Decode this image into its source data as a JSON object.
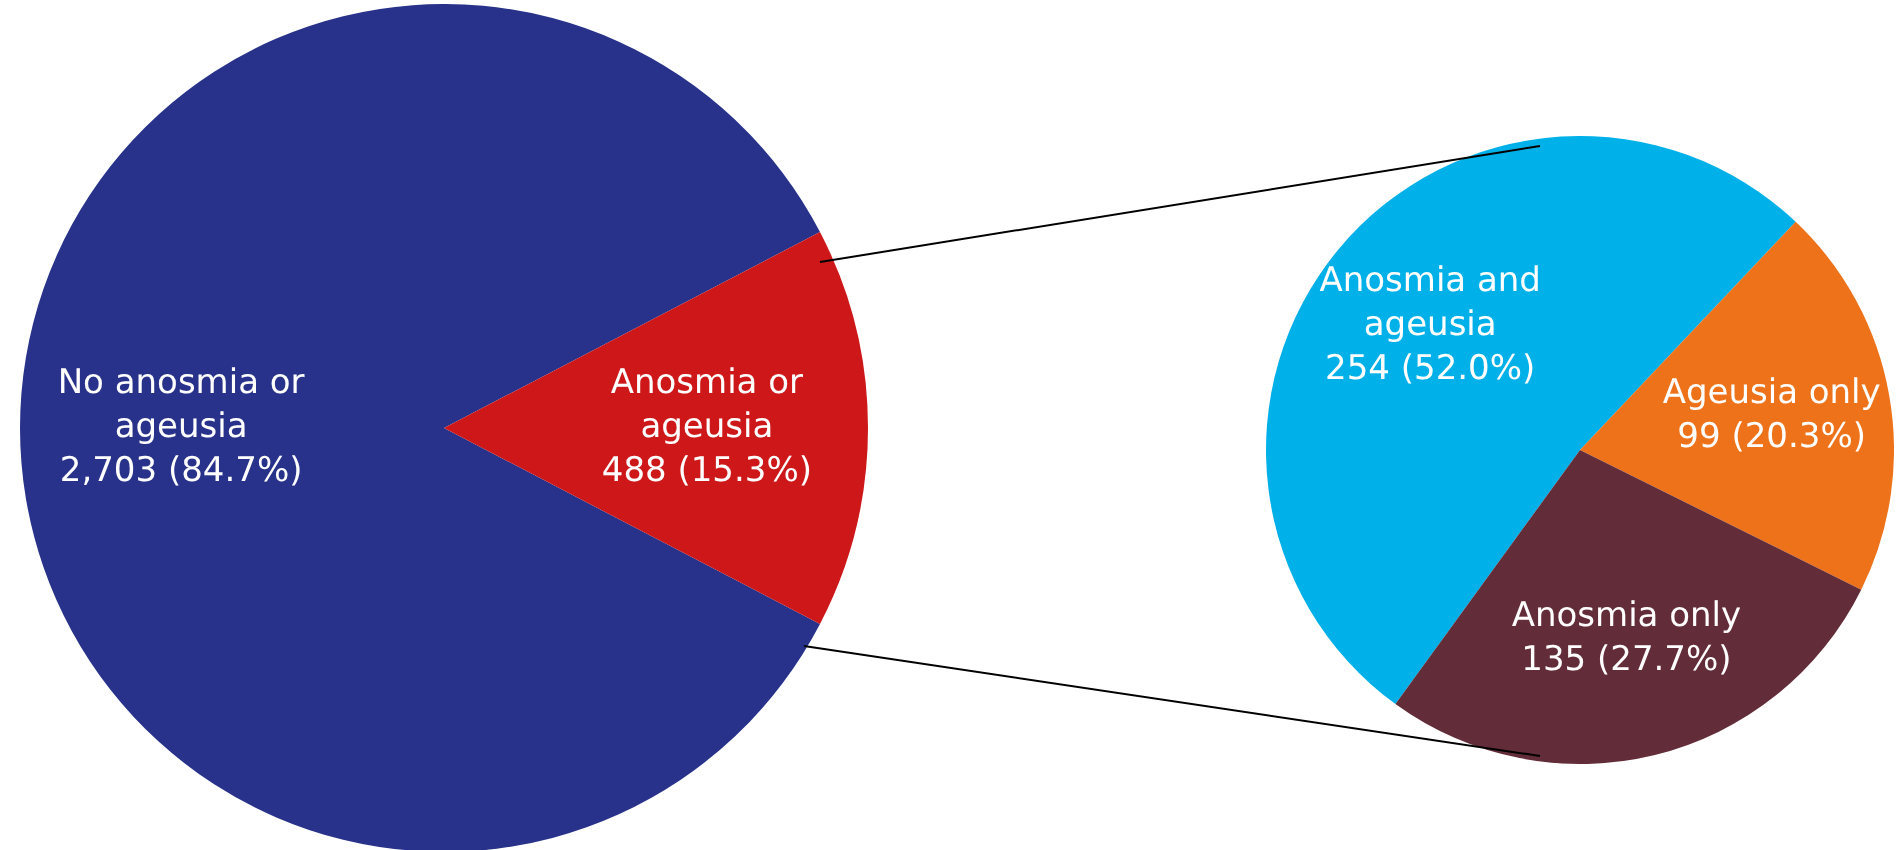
{
  "chart_data": [
    {
      "type": "pie",
      "categories": [
        "No anosmia or ageusia",
        "Anosmia or ageusia"
      ],
      "values": [
        2703,
        488
      ],
      "colors": [
        "#28328a",
        "#cd1719"
      ],
      "value_labels": [
        "2,703 (84.7%)",
        "488 (15.3%)"
      ]
    },
    {
      "type": "pie",
      "categories": [
        "Anosmia and ageusia",
        "Ageusia only",
        "Anosmia only"
      ],
      "values": [
        254,
        99,
        135
      ],
      "colors": [
        "#00b0e8",
        "#ee7219",
        "#622c38"
      ],
      "value_labels": [
        "254 (52.0%)",
        "99 (20.3%)",
        "135 (27.7%)"
      ]
    }
  ]
}
